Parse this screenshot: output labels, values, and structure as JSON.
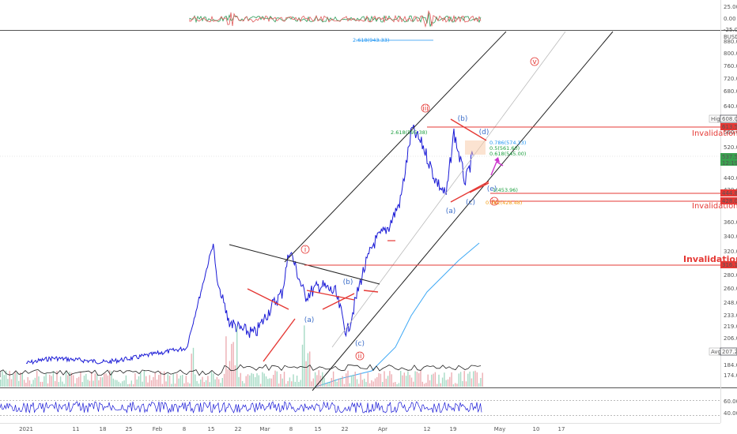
{
  "chart_data": {
    "type": "line",
    "title": "",
    "xlabel": "",
    "ylabel": "",
    "price_axis_ticks": [
      "BUSD",
      "880.00",
      "800.00",
      "760.00",
      "720.00",
      "680.00",
      "640.00",
      "600.00",
      "560.00",
      "520.00",
      "480.00",
      "440.00",
      "420.00",
      "390.00",
      "360.00",
      "340.00",
      "320.00",
      "300.00",
      "280.00",
      "260.00",
      "248.00",
      "233.00",
      "219.00",
      "206.00",
      "195.00",
      "184.00",
      "174.00"
    ],
    "time_axis_ticks": [
      "2021",
      "11",
      "18",
      "25",
      "Feb",
      "8",
      "15",
      "22",
      "Mar",
      "8",
      "15",
      "22",
      "Apr",
      "12",
      "19",
      "May",
      "10",
      "17"
    ],
    "top_osc_ticks": [
      "25.00",
      "0.00",
      "-25.00"
    ],
    "bottom_osc_ticks": [
      "60.00",
      "40.00"
    ],
    "price_labels": [
      {
        "text": "High",
        "value": "608.00",
        "color": "#131722"
      },
      {
        "text": "613.50",
        "value": "",
        "color": "#e53935"
      },
      {
        "text": "537.57",
        "value": "12:19",
        "color": "#3aa14f"
      },
      {
        "text": "444.83",
        "value": "",
        "color": "#e53935"
      },
      {
        "text": "428.00",
        "value": "",
        "color": "#e53935"
      },
      {
        "text": "316.10",
        "value": "",
        "color": "#e53935"
      },
      {
        "text": "Avg",
        "value": "207.27",
        "color": "#131722"
      }
    ],
    "invalidation_labels": [
      "Invalidation",
      "Invalidation",
      "Invalidation"
    ],
    "wave_labels_circled": [
      "i",
      "ii",
      "iii",
      "iv",
      "v"
    ],
    "wave_labels_abc": [
      "(a)",
      "(b)",
      "(c)",
      "(a)",
      "(b)",
      "(c)",
      "(d)",
      "(e)"
    ],
    "fib_labels": [
      {
        "text": "2.618(943.33)",
        "color": "#2196f3"
      },
      {
        "text": "2.618(595.38)",
        "color": "#1b9e3e"
      },
      {
        "text": "0.786(574.13)",
        "color": "#2196f3"
      },
      {
        "text": "0.5(561.60)",
        "color": "#1b9e3e"
      },
      {
        "text": "0.618(545.00)",
        "color": "#1b9e3e"
      },
      {
        "text": "1(453.96)",
        "color": "#1b9e3e"
      },
      {
        "text": "0.382(428.48)",
        "color": "#f39c12"
      }
    ],
    "series": [
      {
        "x": [
          "2021-01-01",
          "2021-01-08",
          "2021-01-15",
          "2021-01-22",
          "2021-01-29",
          "2021-02-05",
          "2021-02-12",
          "2021-02-19",
          "2021-02-20",
          "2021-02-23",
          "2021-02-26",
          "2021-03-02",
          "2021-03-06",
          "2021-03-09",
          "2021-03-11",
          "2021-03-15",
          "2021-03-19",
          "2021-03-23",
          "2021-03-26",
          "2021-03-30",
          "2021-04-02",
          "2021-04-06",
          "2021-04-09",
          "2021-04-12",
          "2021-04-15",
          "2021-04-18",
          "2021-04-21",
          "2021-04-23",
          "2021-04-26",
          "2021-04-28"
        ],
        "values": [
          195,
          200,
          198,
          196,
          200,
          205,
          210,
          350,
          290,
          240,
          230,
          225,
          255,
          275,
          340,
          270,
          285,
          275,
          225,
          300,
          350,
          380,
          430,
          610,
          560,
          480,
          440,
          600,
          470,
          537
        ]
      }
    ]
  }
}
